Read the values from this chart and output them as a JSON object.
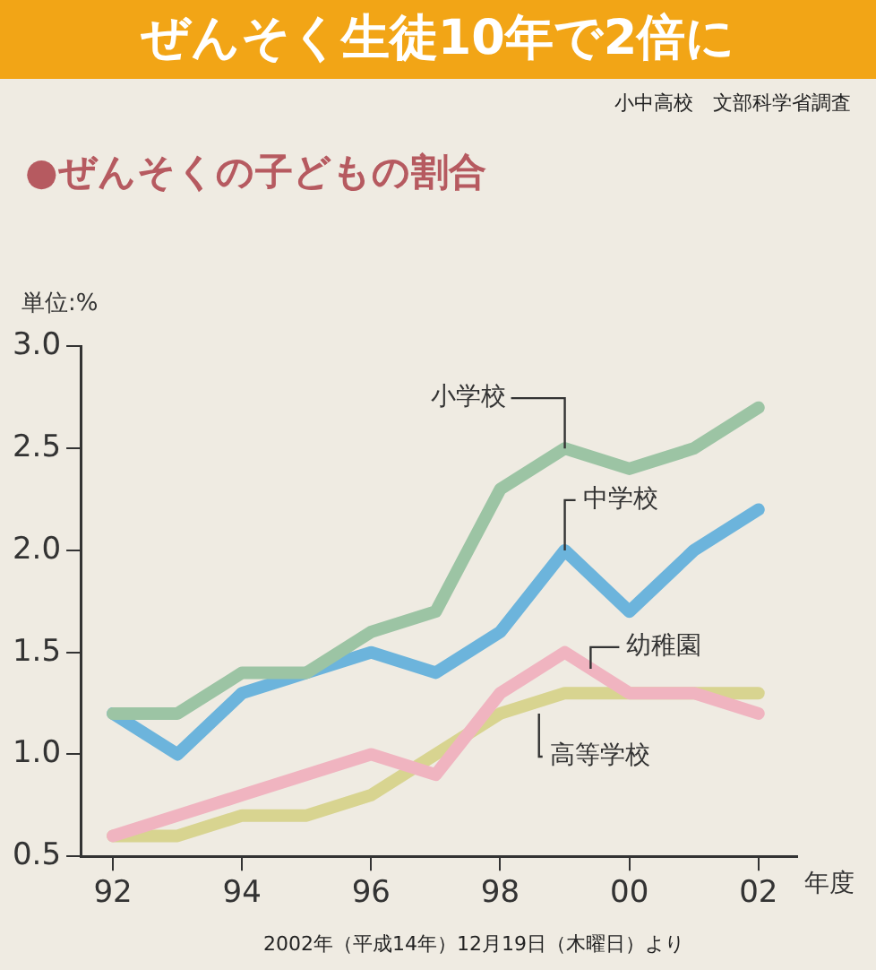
{
  "chart_data": {
    "type": "line",
    "title": "ぜんそく生徒10年で2倍に",
    "subtitle": "●ぜんそくの子どもの割合",
    "ylabel": "単位:%",
    "xlabel": "年度",
    "annotations": [
      "小中高校　文部科学省調査",
      "2002年（平成14年）12月19日（木曜日）より"
    ],
    "x": [
      1992,
      1993,
      1994,
      1995,
      1996,
      1997,
      1998,
      1999,
      2000,
      2001,
      2002
    ],
    "series": [
      {
        "name": "小学校",
        "color": "#9cc4a4",
        "values": [
          1.2,
          1.2,
          1.4,
          1.4,
          1.6,
          1.7,
          2.3,
          2.5,
          2.4,
          2.5,
          2.7
        ]
      },
      {
        "name": "中学校",
        "color": "#6cb4dc",
        "values": [
          1.2,
          1.0,
          1.3,
          1.4,
          1.5,
          1.4,
          1.6,
          2.0,
          1.7,
          2.0,
          2.2
        ]
      },
      {
        "name": "幼稚園",
        "color": "#f0b4c0",
        "values": [
          0.6,
          0.7,
          0.8,
          0.9,
          1.0,
          0.9,
          1.3,
          1.5,
          1.3,
          1.3,
          1.2
        ]
      },
      {
        "name": "高等学校",
        "color": "#d8d490",
        "values": [
          0.6,
          0.6,
          0.7,
          0.7,
          0.8,
          1.0,
          1.2,
          1.3,
          1.3,
          1.3,
          1.3
        ]
      }
    ],
    "xlim": [
      1991.5,
      2002.6
    ],
    "xticks": [
      {
        "value": 1992,
        "label": "92"
      },
      {
        "value": 1994,
        "label": "94"
      },
      {
        "value": 1996,
        "label": "96"
      },
      {
        "value": 1998,
        "label": "98"
      },
      {
        "value": 2000,
        "label": "00"
      },
      {
        "value": 2002,
        "label": "02"
      }
    ],
    "ylim": [
      0.5,
      3.0
    ],
    "yticks": [
      {
        "value": 0.5,
        "label": "0.5"
      },
      {
        "value": 1.0,
        "label": "1.0"
      },
      {
        "value": 1.5,
        "label": "1.5"
      },
      {
        "value": 2.0,
        "label": "2.0"
      },
      {
        "value": 2.5,
        "label": "2.5"
      },
      {
        "value": 3.0,
        "label": "3.0"
      }
    ],
    "grid": false,
    "legend": false,
    "marker": "none",
    "line_style": "solid"
  }
}
